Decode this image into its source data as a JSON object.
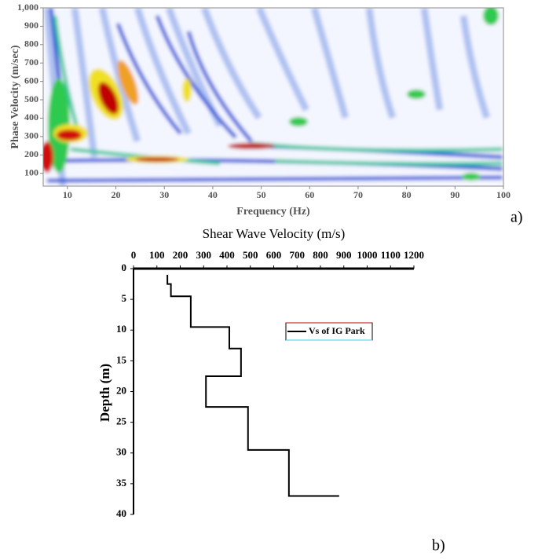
{
  "chart_data": [
    {
      "type": "image",
      "x_label": "Frequency (Hz)",
      "y_label": "Phase Velocity (m/sec)",
      "xlim": [
        5,
        100
      ],
      "xticks": [
        10,
        20,
        30,
        40,
        50,
        60,
        70,
        80,
        90,
        100
      ],
      "ylim": [
        30,
        1000
      ],
      "yticks": [
        100,
        200,
        300,
        400,
        500,
        600,
        700,
        800,
        900,
        {
          "value": 1000,
          "label": "1,000"
        }
      ],
      "annotation": "a)"
    },
    {
      "type": "line",
      "title": "Shear Wave Velocity (m/s)",
      "y_label": "Depth (m)",
      "xlim": [
        0,
        1200
      ],
      "xticks": [
        0,
        100,
        200,
        300,
        400,
        500,
        600,
        700,
        800,
        900,
        1000,
        1100,
        1200
      ],
      "ylim": [
        0,
        40
      ],
      "yticks": [
        0,
        5,
        10,
        15,
        20,
        25,
        30,
        35,
        40
      ],
      "invert_y": true,
      "series": [
        {
          "name": "Vs of IG Park",
          "color": "#000000",
          "x": [
            145,
            145,
            160,
            160,
            245,
            245,
            410,
            410,
            460,
            460,
            310,
            310,
            490,
            490,
            665,
            665,
            880
          ],
          "values": [
            1,
            2.5,
            2.5,
            4.5,
            4.5,
            9.5,
            9.5,
            13,
            13,
            17.5,
            17.5,
            22.5,
            22.5,
            29.5,
            29.5,
            37,
            37
          ]
        }
      ],
      "annotation": "b)"
    }
  ]
}
